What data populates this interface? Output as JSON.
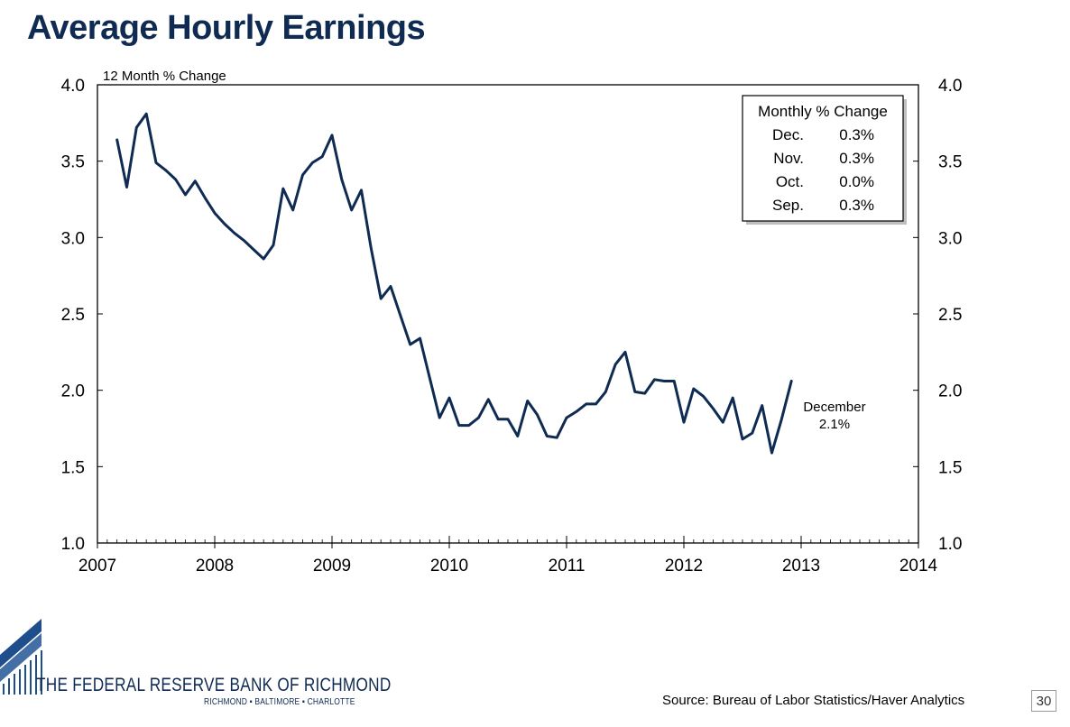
{
  "page": {
    "title": "Average Hourly Earnings",
    "source": "Source: Bureau of Labor Statistics/Haver Analytics",
    "page_number": "30",
    "bank_name": "THE FEDERAL RESERVE BANK OF RICHMOND",
    "bank_cities": "RICHMOND ▪ BALTIMORE ▪ CHARLOTTE",
    "colors": {
      "title": "#0f2b52",
      "line": "#0f2b52",
      "logo": "#1f4e8c"
    }
  },
  "chart_data": {
    "type": "line",
    "title": "Average Hourly Earnings",
    "ylabel": "12 Month % Change",
    "xlabel": "",
    "ylim": [
      1.0,
      4.0
    ],
    "yticks": [
      1.0,
      1.5,
      2.0,
      2.5,
      3.0,
      3.5,
      4.0
    ],
    "ytick_labels": [
      "1.0",
      "1.5",
      "2.0",
      "2.5",
      "3.0",
      "3.5",
      "4.0"
    ],
    "xlim": [
      2007,
      2014
    ],
    "xticks": [
      2007,
      2008,
      2009,
      2010,
      2011,
      2012,
      2013,
      2014
    ],
    "xtick_labels": [
      "2007",
      "2008",
      "2009",
      "2010",
      "2011",
      "2012",
      "2013",
      "2014"
    ],
    "grid": false,
    "series": [
      {
        "name": "Average Hourly Earnings, 12 Month % Change",
        "start": "2007-03",
        "frequency": "monthly",
        "values": [
          3.64,
          3.33,
          3.72,
          3.81,
          3.49,
          3.44,
          3.38,
          3.28,
          3.37,
          3.26,
          3.16,
          3.09,
          3.03,
          2.98,
          2.92,
          2.86,
          2.95,
          3.32,
          3.18,
          3.41,
          3.49,
          3.53,
          3.67,
          3.38,
          3.18,
          3.31,
          2.93,
          2.6,
          2.68,
          2.49,
          2.3,
          2.34,
          2.08,
          1.82,
          1.95,
          1.77,
          1.77,
          1.82,
          1.94,
          1.81,
          1.81,
          1.7,
          1.93,
          1.84,
          1.7,
          1.69,
          1.82,
          1.86,
          1.91,
          1.91,
          1.99,
          2.17,
          2.25,
          1.99,
          1.98,
          2.07,
          2.06,
          2.06,
          1.79,
          2.01,
          1.96,
          1.88,
          1.79,
          1.95,
          1.68,
          1.72,
          1.9,
          1.59,
          1.81,
          2.06
        ]
      }
    ],
    "annotation": {
      "label": "December",
      "value_text": "2.1%"
    },
    "inset_table": {
      "header": "Monthly % Change",
      "rows": [
        {
          "month": "Dec.",
          "value": "0.3%"
        },
        {
          "month": "Nov.",
          "value": "0.3%"
        },
        {
          "month": "Oct.",
          "value": "0.0%"
        },
        {
          "month": "Sep.",
          "value": "0.3%"
        }
      ]
    }
  }
}
